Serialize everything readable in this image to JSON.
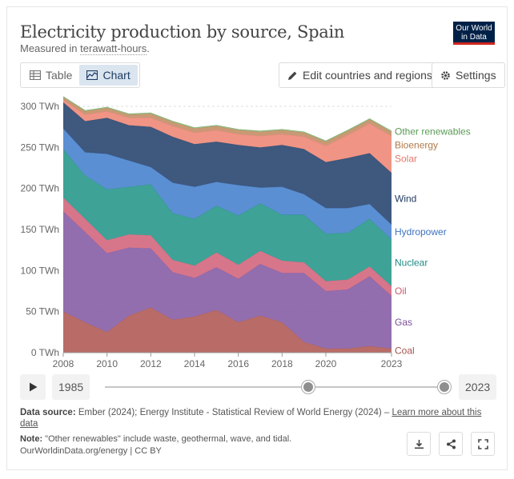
{
  "header": {
    "title": "Electricity production by source, Spain",
    "subtitle_prefix": "Measured in ",
    "subtitle_unit": "terawatt-hours",
    "subtitle_suffix": ".",
    "logo_line1": "Our World",
    "logo_line2": "in Data"
  },
  "controls": {
    "tab_table": "Table",
    "tab_chart": "Chart",
    "edit_button": "Edit countries and regions",
    "settings_button": "Settings"
  },
  "timeline": {
    "start_year": "1985",
    "end_year": "2023",
    "start_fraction": 0.6,
    "end_fraction": 1.0
  },
  "footer": {
    "source_label": "Data source:",
    "source_text": " Ember (2024); Energy Institute - Statistical Review of World Energy (2024) – ",
    "source_link": "Learn more about this data",
    "note_label": "Note:",
    "note_text": " \"Other renewables\" include waste, geothermal, wave, and tidal.",
    "url_line": "OurWorldinData.org/energy | CC BY"
  },
  "icons": {
    "table": "table-icon",
    "chart": "chart-icon",
    "edit": "pencil-icon",
    "settings": "gear-icon",
    "play": "play-icon",
    "download": "download-icon",
    "share": "share-icon",
    "fullscreen": "fullscreen-icon"
  },
  "chart_data": {
    "type": "area",
    "stacked": true,
    "title": "Electricity production by source, Spain",
    "unit": "TWh",
    "x": [
      2008,
      2009,
      2010,
      2011,
      2012,
      2013,
      2014,
      2015,
      2016,
      2017,
      2018,
      2019,
      2020,
      2021,
      2022,
      2023
    ],
    "x_ticks": [
      "2008",
      "2010",
      "2012",
      "2014",
      "2016",
      "2018",
      "2020",
      "2023"
    ],
    "x_tick_values": [
      2008,
      2010,
      2012,
      2014,
      2016,
      2018,
      2020,
      2023
    ],
    "y_ticks": [
      "0 TWh",
      "50 TWh",
      "100 TWh",
      "150 TWh",
      "200 TWh",
      "250 TWh",
      "300 TWh"
    ],
    "y_tick_values": [
      0,
      50,
      100,
      150,
      200,
      250,
      300
    ],
    "ylim": [
      0,
      300
    ],
    "grid": true,
    "legend_placement": "right",
    "series": [
      {
        "name": "Coal",
        "color": "#a2524b",
        "fill": "#b3605a",
        "values": [
          50,
          37,
          25,
          45,
          55,
          40,
          44,
          52,
          37,
          45,
          37,
          13,
          5,
          5,
          8,
          5
        ]
      },
      {
        "name": "Gas",
        "color": "#7a4f9a",
        "fill": "#8a62a8",
        "values": [
          122,
          110,
          96,
          83,
          72,
          58,
          47,
          52,
          53,
          63,
          60,
          84,
          70,
          72,
          85,
          64
        ]
      },
      {
        "name": "Oil",
        "color": "#c85a72",
        "fill": "#d46a80",
        "values": [
          17,
          16,
          16,
          16,
          16,
          15,
          15,
          18,
          17,
          16,
          15,
          13,
          12,
          12,
          12,
          12
        ]
      },
      {
        "name": "Nuclear",
        "color": "#1f8a84",
        "fill": "#2e9a8e",
        "values": [
          59,
          53,
          62,
          58,
          62,
          57,
          57,
          57,
          60,
          58,
          56,
          58,
          58,
          57,
          58,
          57
        ]
      },
      {
        "name": "Hydropower",
        "color": "#3f73c0",
        "fill": "#4d86cf",
        "values": [
          25,
          28,
          43,
          32,
          21,
          37,
          39,
          29,
          37,
          19,
          34,
          25,
          31,
          30,
          18,
          18
        ]
      },
      {
        "name": "Wind",
        "color": "#233b63",
        "fill": "#2e4a73",
        "values": [
          32,
          38,
          44,
          43,
          49,
          56,
          52,
          49,
          49,
          49,
          51,
          55,
          56,
          61,
          62,
          63
        ]
      },
      {
        "name": "Solar",
        "color": "#e4786a",
        "fill": "#ef8b7b",
        "values": [
          3,
          8,
          8,
          9,
          11,
          13,
          14,
          14,
          13,
          14,
          13,
          15,
          20,
          28,
          36,
          45
        ]
      },
      {
        "name": "Bioenergy",
        "color": "#b07a49",
        "fill": "#c4906a",
        "values": [
          3,
          4,
          4,
          4,
          5,
          5,
          5,
          5,
          5,
          5,
          5,
          5,
          5,
          5,
          5,
          5
        ]
      },
      {
        "name": "Other renewables",
        "color": "#5a9a55",
        "fill": "#9bbf7d",
        "values": [
          1,
          1,
          1,
          1,
          1,
          1,
          1,
          1,
          1,
          1,
          1,
          1,
          1,
          1,
          1,
          1
        ]
      }
    ]
  }
}
